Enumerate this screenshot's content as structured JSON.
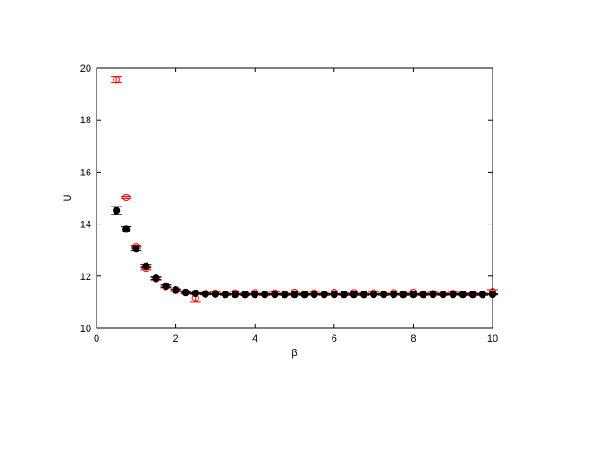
{
  "chart_data": {
    "type": "scatter",
    "title": "",
    "xlabel": "β",
    "ylabel": "U",
    "xlim": [
      0,
      10
    ],
    "ylim": [
      10,
      20
    ],
    "xticks": [
      0,
      2,
      4,
      6,
      8,
      10
    ],
    "yticks": [
      10,
      12,
      14,
      16,
      18,
      20
    ],
    "grid": false,
    "legend": "none",
    "series": [
      {
        "marker": "open-circle",
        "color": "#ff0000",
        "points": [
          {
            "x": 0.5,
            "y": 19.55,
            "err": 0.12
          },
          {
            "x": 0.75,
            "y": 15.02,
            "err": 0.05
          },
          {
            "x": 1.0,
            "y": 13.12,
            "err": 0.06
          },
          {
            "x": 1.25,
            "y": 12.3,
            "err": 0.06
          },
          {
            "x": 1.5,
            "y": 11.9,
            "err": 0.05
          },
          {
            "x": 1.75,
            "y": 11.6,
            "err": 0.05
          },
          {
            "x": 2.0,
            "y": 11.45,
            "err": 0.05
          },
          {
            "x": 2.25,
            "y": 11.38,
            "err": 0.05
          },
          {
            "x": 2.5,
            "y": 11.15,
            "err": 0.15
          },
          {
            "x": 2.75,
            "y": 11.32,
            "err": 0.04
          },
          {
            "x": 3.0,
            "y": 11.35,
            "err": 0.05
          },
          {
            "x": 3.25,
            "y": 11.3,
            "err": 0.04
          },
          {
            "x": 3.5,
            "y": 11.35,
            "err": 0.06
          },
          {
            "x": 3.75,
            "y": 11.3,
            "err": 0.04
          },
          {
            "x": 4.0,
            "y": 11.36,
            "err": 0.06
          },
          {
            "x": 4.25,
            "y": 11.3,
            "err": 0.04
          },
          {
            "x": 4.5,
            "y": 11.35,
            "err": 0.05
          },
          {
            "x": 4.75,
            "y": 11.3,
            "err": 0.04
          },
          {
            "x": 5.0,
            "y": 11.37,
            "err": 0.06
          },
          {
            "x": 5.25,
            "y": 11.3,
            "err": 0.04
          },
          {
            "x": 5.5,
            "y": 11.35,
            "err": 0.06
          },
          {
            "x": 5.75,
            "y": 11.3,
            "err": 0.04
          },
          {
            "x": 6.0,
            "y": 11.37,
            "err": 0.06
          },
          {
            "x": 6.25,
            "y": 11.3,
            "err": 0.04
          },
          {
            "x": 6.5,
            "y": 11.36,
            "err": 0.06
          },
          {
            "x": 6.75,
            "y": 11.3,
            "err": 0.04
          },
          {
            "x": 7.0,
            "y": 11.35,
            "err": 0.05
          },
          {
            "x": 7.25,
            "y": 11.3,
            "err": 0.04
          },
          {
            "x": 7.5,
            "y": 11.36,
            "err": 0.06
          },
          {
            "x": 7.75,
            "y": 11.3,
            "err": 0.04
          },
          {
            "x": 8.0,
            "y": 11.37,
            "err": 0.06
          },
          {
            "x": 8.25,
            "y": 11.3,
            "err": 0.04
          },
          {
            "x": 8.5,
            "y": 11.33,
            "err": 0.05
          },
          {
            "x": 8.75,
            "y": 11.3,
            "err": 0.04
          },
          {
            "x": 9.0,
            "y": 11.33,
            "err": 0.05
          },
          {
            "x": 9.25,
            "y": 11.3,
            "err": 0.04
          },
          {
            "x": 9.5,
            "y": 11.3,
            "err": 0.05
          },
          {
            "x": 9.75,
            "y": 11.3,
            "err": 0.04
          },
          {
            "x": 10.0,
            "y": 11.4,
            "err": 0.08
          }
        ]
      },
      {
        "marker": "filled-circle",
        "color": "#000000",
        "points": [
          {
            "x": 0.5,
            "y": 14.52,
            "err": 0.15
          },
          {
            "x": 0.75,
            "y": 13.8,
            "err": 0.1
          },
          {
            "x": 1.0,
            "y": 13.05,
            "err": 0.08
          },
          {
            "x": 1.25,
            "y": 12.38,
            "err": 0.07
          },
          {
            "x": 1.5,
            "y": 11.92,
            "err": 0.05
          },
          {
            "x": 1.75,
            "y": 11.62,
            "err": 0.04
          },
          {
            "x": 2.0,
            "y": 11.47,
            "err": 0.03
          },
          {
            "x": 2.25,
            "y": 11.37,
            "err": 0.03
          },
          {
            "x": 2.5,
            "y": 11.34,
            "err": 0.02
          },
          {
            "x": 2.75,
            "y": 11.32,
            "err": 0.02
          },
          {
            "x": 3.0,
            "y": 11.31,
            "err": 0.02
          },
          {
            "x": 3.25,
            "y": 11.3,
            "err": 0.02
          },
          {
            "x": 3.5,
            "y": 11.3,
            "err": 0.02
          },
          {
            "x": 3.75,
            "y": 11.3,
            "err": 0.02
          },
          {
            "x": 4.0,
            "y": 11.3,
            "err": 0.02
          },
          {
            "x": 4.25,
            "y": 11.3,
            "err": 0.02
          },
          {
            "x": 4.5,
            "y": 11.3,
            "err": 0.02
          },
          {
            "x": 4.75,
            "y": 11.3,
            "err": 0.02
          },
          {
            "x": 5.0,
            "y": 11.3,
            "err": 0.02
          },
          {
            "x": 5.25,
            "y": 11.3,
            "err": 0.02
          },
          {
            "x": 5.5,
            "y": 11.3,
            "err": 0.02
          },
          {
            "x": 5.75,
            "y": 11.3,
            "err": 0.02
          },
          {
            "x": 6.0,
            "y": 11.3,
            "err": 0.02
          },
          {
            "x": 6.25,
            "y": 11.3,
            "err": 0.02
          },
          {
            "x": 6.5,
            "y": 11.3,
            "err": 0.02
          },
          {
            "x": 6.75,
            "y": 11.3,
            "err": 0.02
          },
          {
            "x": 7.0,
            "y": 11.3,
            "err": 0.02
          },
          {
            "x": 7.25,
            "y": 11.3,
            "err": 0.02
          },
          {
            "x": 7.5,
            "y": 11.3,
            "err": 0.02
          },
          {
            "x": 7.75,
            "y": 11.3,
            "err": 0.02
          },
          {
            "x": 8.0,
            "y": 11.3,
            "err": 0.02
          },
          {
            "x": 8.25,
            "y": 11.3,
            "err": 0.02
          },
          {
            "x": 8.5,
            "y": 11.3,
            "err": 0.02
          },
          {
            "x": 8.75,
            "y": 11.3,
            "err": 0.02
          },
          {
            "x": 9.0,
            "y": 11.3,
            "err": 0.02
          },
          {
            "x": 9.25,
            "y": 11.3,
            "err": 0.02
          },
          {
            "x": 9.5,
            "y": 11.3,
            "err": 0.02
          },
          {
            "x": 9.75,
            "y": 11.3,
            "err": 0.02
          },
          {
            "x": 10.0,
            "y": 11.3,
            "err": 0.02
          }
        ]
      }
    ]
  }
}
